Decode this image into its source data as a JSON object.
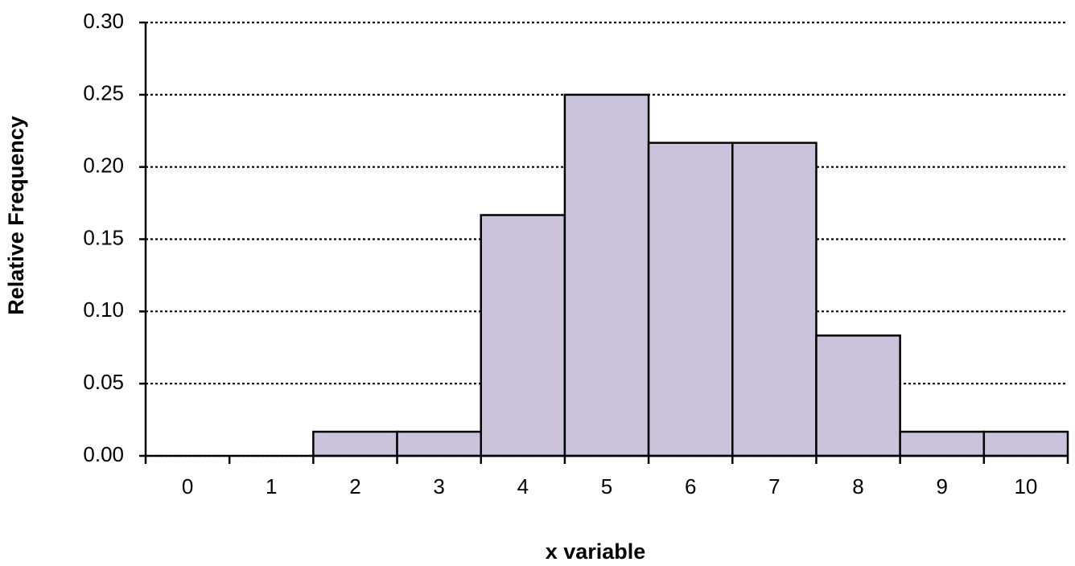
{
  "chart_data": {
    "type": "bar",
    "x_label": "x variable",
    "y_label": "Relative Frequency",
    "categories": [
      "0",
      "1",
      "2",
      "3",
      "4",
      "5",
      "6",
      "7",
      "8",
      "9",
      "10"
    ],
    "values": [
      0,
      0,
      0.0167,
      0.0167,
      0.1667,
      0.25,
      0.2167,
      0.2167,
      0.0833,
      0.0167,
      0.0167
    ],
    "color": "#cbc3dc",
    "ylim": [
      0,
      0.3
    ],
    "yticks": [
      {
        "value": 0,
        "label": "0.00"
      },
      0.05,
      {
        "value": 0.1,
        "label": "0.10"
      },
      0.15,
      {
        "value": 0.2,
        "label": "0.20"
      },
      0.25,
      {
        "value": 0.3,
        "label": "0.30"
      }
    ],
    "grid": true
  }
}
